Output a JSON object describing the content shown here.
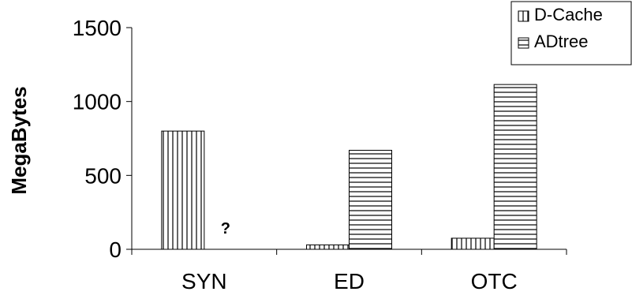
{
  "chart_data": {
    "type": "bar",
    "categories": [
      "SYN",
      "ED",
      "OTC"
    ],
    "series": [
      {
        "name": "D-Cache",
        "values": [
          800,
          30,
          75
        ],
        "pattern": "vertical"
      },
      {
        "name": "ADtree",
        "values": [
          null,
          670,
          1115
        ],
        "pattern": "horizontal"
      }
    ],
    "title": "",
    "xlabel": "",
    "ylabel": "MegaBytes",
    "ylim": [
      0,
      1500
    ],
    "yticks": [
      0,
      500,
      1000,
      1500
    ],
    "grid": false,
    "legend_position": "top-right",
    "annotations": [
      {
        "text": "?",
        "category": "SYN",
        "series": "ADtree"
      }
    ]
  }
}
